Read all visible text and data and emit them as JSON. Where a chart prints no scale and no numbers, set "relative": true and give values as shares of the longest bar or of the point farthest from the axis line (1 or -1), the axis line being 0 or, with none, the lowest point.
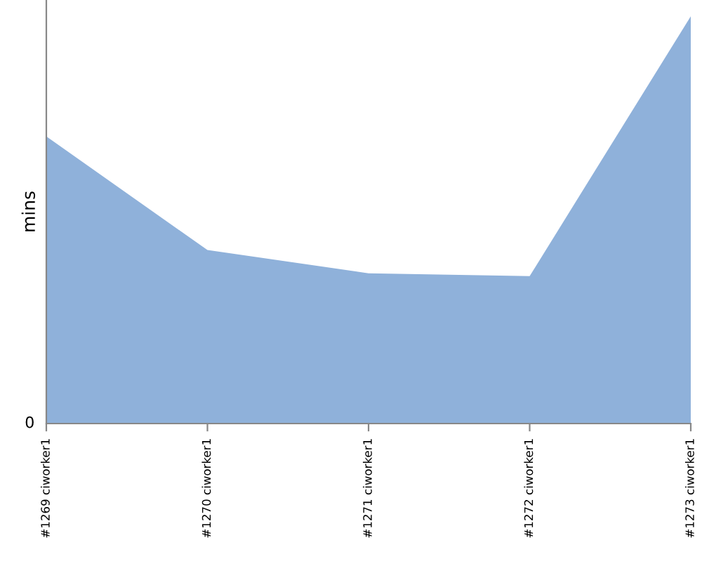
{
  "chart_data": {
    "type": "area",
    "ylabel": "mins",
    "relative": true,
    "categories": [
      "#1269 ciworker1",
      "#1270 ciworker1",
      "#1271 ciworker1",
      "#1272 ciworker1",
      "#1273 ciworker1"
    ],
    "series": [
      {
        "color": "#8fb1da",
        "values": [
          0.705,
          0.426,
          0.369,
          0.362,
          1.0
        ]
      }
    ],
    "annotations": [
      "0"
    ],
    "grid": false,
    "legend": false
  }
}
